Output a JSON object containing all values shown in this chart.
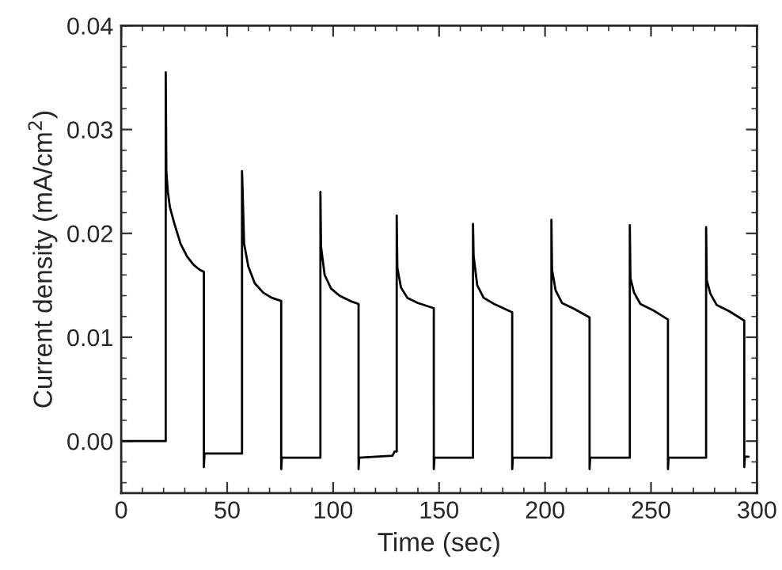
{
  "chart_data": {
    "type": "line",
    "xlabel": "Time (sec)",
    "ylabel": "Current density (mA/cm$^{2}$)",
    "xlim": [
      0,
      300
    ],
    "xticks": [
      0,
      50,
      100,
      150,
      200,
      250,
      300
    ],
    "ylim": [
      -0.005,
      0.04
    ],
    "yticks": [
      {
        "value": 0,
        "label": "0.00"
      },
      {
        "value": 0.01,
        "label": "0.01"
      },
      {
        "value": 0.02,
        "label": "0.02"
      },
      {
        "value": 0.03,
        "label": "0.03"
      },
      {
        "value": 0.04,
        "label": "0.04"
      }
    ],
    "grid": false,
    "legend": false,
    "marker": "none",
    "line_style": "solid",
    "series": [
      {
        "color": "#000000",
        "x": [
          0,
          21,
          21,
          21.3,
          22,
          23,
          25,
          28,
          31,
          34,
          37,
          39,
          39,
          39.3,
          57,
          57,
          57.3,
          58,
          60,
          63,
          67,
          71,
          75.5,
          75.5,
          75.8,
          94,
          94,
          94.3,
          96,
          99,
          103,
          108,
          112,
          112,
          112.3,
          128,
          129,
          130,
          130,
          130.3,
          132,
          135,
          140,
          147.5,
          147.5,
          147.8,
          166,
          166,
          166.3,
          168,
          171,
          176,
          184.5,
          184.5,
          184.8,
          203,
          203,
          203.3,
          205,
          208,
          214,
          221,
          221,
          221.3,
          240,
          240,
          240.3,
          242,
          245,
          251,
          258,
          258,
          258.3,
          276,
          276,
          276.3,
          278,
          281,
          287,
          294,
          294,
          294.3,
          296
        ],
        "values": [
          0,
          0,
          0.0355,
          0.026,
          0.024,
          0.0225,
          0.021,
          0.019,
          0.0178,
          0.017,
          0.0165,
          0.0163,
          -0.0025,
          -0.0012,
          -0.0012,
          0.026,
          0.024,
          0.019,
          0.0168,
          0.0152,
          0.0143,
          0.0138,
          0.0135,
          -0.0027,
          -0.0016,
          -0.0016,
          0.024,
          0.0187,
          0.016,
          0.0147,
          0.014,
          0.0135,
          0.0132,
          -0.0027,
          -0.0016,
          -0.0014,
          -0.001,
          -0.001,
          0.0217,
          0.0167,
          0.0148,
          0.0138,
          0.0133,
          0.0128,
          -0.0027,
          -0.0016,
          -0.0016,
          0.0209,
          0.0178,
          0.015,
          0.0138,
          0.0132,
          0.0124,
          -0.0027,
          -0.0016,
          -0.0016,
          0.0213,
          0.0165,
          0.0145,
          0.0133,
          0.0127,
          0.0119,
          -0.0027,
          -0.0016,
          -0.0016,
          0.0208,
          0.0157,
          0.0143,
          0.0132,
          0.0126,
          0.0117,
          -0.0027,
          -0.0016,
          -0.0016,
          0.0206,
          0.0155,
          0.0142,
          0.0131,
          0.0125,
          0.0116,
          -0.0025,
          -0.0015,
          -0.0015
        ]
      }
    ]
  }
}
